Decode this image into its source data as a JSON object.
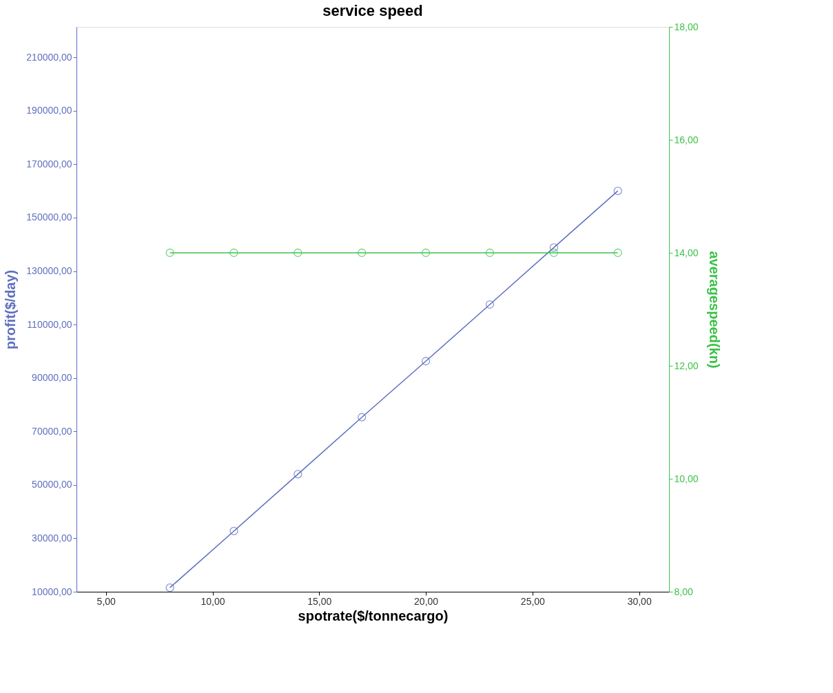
{
  "chart_data": {
    "type": "line",
    "title": "service speed",
    "xlabel": "spotrate($/tonnecargo)",
    "ylabel": "profit($/day)",
    "y2label": "averagespeed(kn)",
    "x": [
      8,
      11,
      14,
      17,
      20,
      23,
      26,
      29
    ],
    "series": [
      {
        "color": "#5f6fbf",
        "values": [
          11500,
          32700,
          54000,
          75300,
          96300,
          117500,
          138800,
          160000
        ]
      },
      {
        "color": "#3cc24a",
        "axis": "y2",
        "values": [
          14,
          14,
          14,
          14,
          14,
          14,
          14,
          14
        ]
      }
    ],
    "xlim": [
      3.62,
      31.4
    ],
    "xticks": [
      {
        "value": 5,
        "label": "5,00"
      },
      {
        "value": 10,
        "label": "10,00"
      },
      {
        "value": 15,
        "label": "15,00"
      },
      {
        "value": 20,
        "label": "20,00"
      },
      {
        "value": 25,
        "label": "25,00"
      },
      {
        "value": 30,
        "label": "30,00"
      }
    ],
    "ylim": [
      10000,
      221400
    ],
    "yticks": [
      {
        "value": 10000,
        "label": "10000,00"
      },
      {
        "value": 30000,
        "label": "30000,00"
      },
      {
        "value": 50000,
        "label": "50000,00"
      },
      {
        "value": 70000,
        "label": "70000,00"
      },
      {
        "value": 90000,
        "label": "90000,00"
      },
      {
        "value": 110000,
        "label": "110000,00"
      },
      {
        "value": 130000,
        "label": "130000,00"
      },
      {
        "value": 150000,
        "label": "150000,00"
      },
      {
        "value": 170000,
        "label": "170000,00"
      },
      {
        "value": 190000,
        "label": "190000,00"
      },
      {
        "value": 210000,
        "label": "210000,00"
      }
    ],
    "y2lim": [
      8,
      18
    ],
    "y2ticks": [
      {
        "value": 8,
        "label": "8,00"
      },
      {
        "value": 10,
        "label": "10,00"
      },
      {
        "value": 12,
        "label": "12,00"
      },
      {
        "value": 14,
        "label": "14,00"
      },
      {
        "value": 16,
        "label": "16,00"
      },
      {
        "value": 18,
        "label": "18,00"
      }
    ],
    "marker": "circle",
    "grid": false
  }
}
